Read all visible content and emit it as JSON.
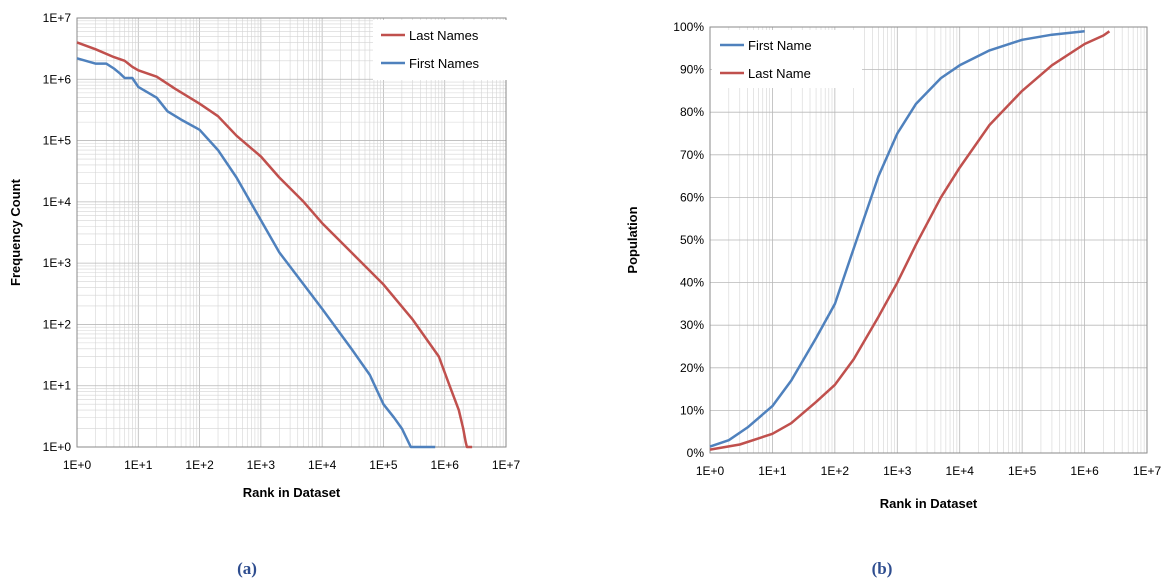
{
  "panels": [
    {
      "caption": "(a)",
      "chart_data": {
        "type": "line",
        "x_scale": "log",
        "y_scale": "log",
        "xlabel": "Rank in Dataset",
        "ylabel": "Frequency Count",
        "xlim": [
          1,
          10000000
        ],
        "ylim": [
          1,
          10000000
        ],
        "x_ticks": [
          "1E+0",
          "1E+1",
          "1E+2",
          "1E+3",
          "1E+4",
          "1E+5",
          "1E+6",
          "1E+7"
        ],
        "y_ticks": [
          "1E+0",
          "1E+1",
          "1E+2",
          "1E+3",
          "1E+4",
          "1E+5",
          "1E+6",
          "1E+7"
        ],
        "grid": true,
        "legend_position": "top-right",
        "series": [
          {
            "name": "Last Names",
            "color": "#c0504d",
            "points": [
              [
                1,
                4000000
              ],
              [
                2,
                3100000
              ],
              [
                4,
                2300000
              ],
              [
                6,
                2000000
              ],
              [
                8,
                1600000
              ],
              [
                10,
                1400000
              ],
              [
                20,
                1100000
              ],
              [
                40,
                700000
              ],
              [
                100,
                400000
              ],
              [
                200,
                250000
              ],
              [
                400,
                120000
              ],
              [
                1000,
                55000
              ],
              [
                2000,
                25000
              ],
              [
                5000,
                10000
              ],
              [
                10000,
                4500
              ],
              [
                30000,
                1500
              ],
              [
                100000,
                450
              ],
              [
                300000,
                120
              ],
              [
                800000,
                30
              ],
              [
                1200000,
                10
              ],
              [
                1700000,
                4
              ],
              [
                2000000,
                2
              ],
              [
                2200000,
                1.2
              ],
              [
                2300000,
                1
              ],
              [
                2800000,
                1
              ]
            ]
          },
          {
            "name": "First Names",
            "color": "#4f81bd",
            "points": [
              [
                1,
                2200000
              ],
              [
                2,
                1800000
              ],
              [
                3,
                1800000
              ],
              [
                4,
                1500000
              ],
              [
                5,
                1250000
              ],
              [
                6,
                1050000
              ],
              [
                8,
                1050000
              ],
              [
                10,
                750000
              ],
              [
                20,
                500000
              ],
              [
                30,
                300000
              ],
              [
                50,
                220000
              ],
              [
                100,
                150000
              ],
              [
                200,
                70000
              ],
              [
                400,
                25000
              ],
              [
                1000,
                5000
              ],
              [
                2000,
                1500
              ],
              [
                4000,
                600
              ],
              [
                10000,
                180
              ],
              [
                30000,
                40
              ],
              [
                60000,
                15
              ],
              [
                100000,
                5
              ],
              [
                150000,
                3
              ],
              [
                200000,
                2
              ],
              [
                280000,
                1
              ],
              [
                700000,
                1
              ]
            ]
          }
        ]
      }
    },
    {
      "caption": "(b)",
      "chart_data": {
        "type": "line",
        "x_scale": "log",
        "y_scale": "linear",
        "xlabel": "Rank in Dataset",
        "ylabel": "Population",
        "xlim": [
          1,
          10000000
        ],
        "ylim": [
          0,
          100
        ],
        "x_ticks": [
          "1E+0",
          "1E+1",
          "1E+2",
          "1E+3",
          "1E+4",
          "1E+5",
          "1E+6",
          "1E+7"
        ],
        "y_ticks": [
          "0%",
          "10%",
          "20%",
          "30%",
          "40%",
          "50%",
          "60%",
          "70%",
          "80%",
          "90%",
          "100%"
        ],
        "grid": true,
        "legend_position": "top-left",
        "series": [
          {
            "name": "First Name",
            "color": "#4f81bd",
            "points": [
              [
                1,
                1.5
              ],
              [
                2,
                3
              ],
              [
                4,
                6
              ],
              [
                10,
                11
              ],
              [
                20,
                17
              ],
              [
                50,
                27
              ],
              [
                100,
                35
              ],
              [
                200,
                48
              ],
              [
                500,
                65
              ],
              [
                1000,
                75
              ],
              [
                2000,
                82
              ],
              [
                5000,
                88
              ],
              [
                10000,
                91
              ],
              [
                30000,
                94.5
              ],
              [
                100000,
                97
              ],
              [
                300000,
                98.2
              ],
              [
                1000000,
                99
              ]
            ]
          },
          {
            "name": "Last Name",
            "color": "#c0504d",
            "points": [
              [
                1,
                0.8
              ],
              [
                3,
                2
              ],
              [
                10,
                4.5
              ],
              [
                20,
                7
              ],
              [
                50,
                12
              ],
              [
                100,
                16
              ],
              [
                200,
                22
              ],
              [
                500,
                32
              ],
              [
                1000,
                40
              ],
              [
                2000,
                49
              ],
              [
                5000,
                60
              ],
              [
                10000,
                67
              ],
              [
                30000,
                77
              ],
              [
                100000,
                85
              ],
              [
                300000,
                91
              ],
              [
                1000000,
                96
              ],
              [
                2000000,
                98
              ],
              [
                2500000,
                99
              ]
            ]
          }
        ]
      }
    }
  ]
}
